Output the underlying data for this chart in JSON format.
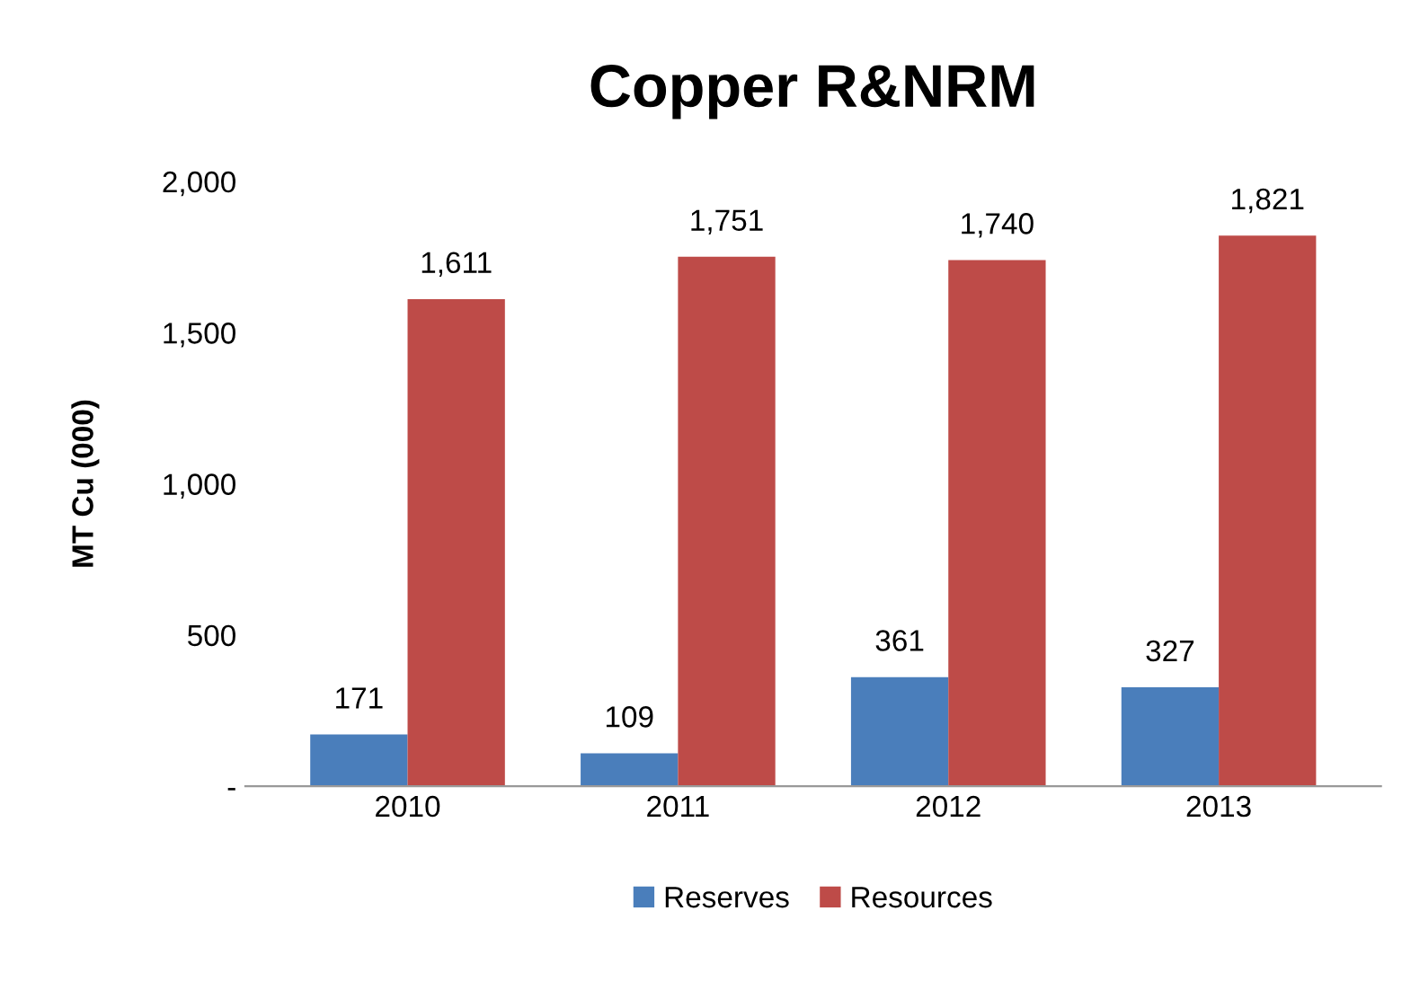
{
  "chart_data": {
    "type": "bar",
    "title": "Copper R&NRM",
    "ylabel": "MT Cu (000)",
    "categories": [
      "2010",
      "2011",
      "2012",
      "2013"
    ],
    "series": [
      {
        "name": "Reserves",
        "color": "#4a7ebb",
        "values": [
          171,
          109,
          361,
          327
        ],
        "value_labels": [
          "171",
          "109",
          "361",
          "327"
        ]
      },
      {
        "name": "Resources",
        "color": "#be4b48",
        "values": [
          1611,
          1751,
          1740,
          1821
        ],
        "value_labels": [
          "1,611",
          "1,751",
          "1,740",
          "1,821"
        ]
      }
    ],
    "ylim": [
      0,
      2000
    ],
    "yticks": [
      {
        "value": 0,
        "label": "-"
      },
      {
        "value": 500,
        "label": "500"
      },
      {
        "value": 1000,
        "label": "1,000"
      },
      {
        "value": 1500,
        "label": "1,500"
      },
      {
        "value": 2000,
        "label": "2,000"
      }
    ],
    "grid": false,
    "legend": "bottom"
  }
}
